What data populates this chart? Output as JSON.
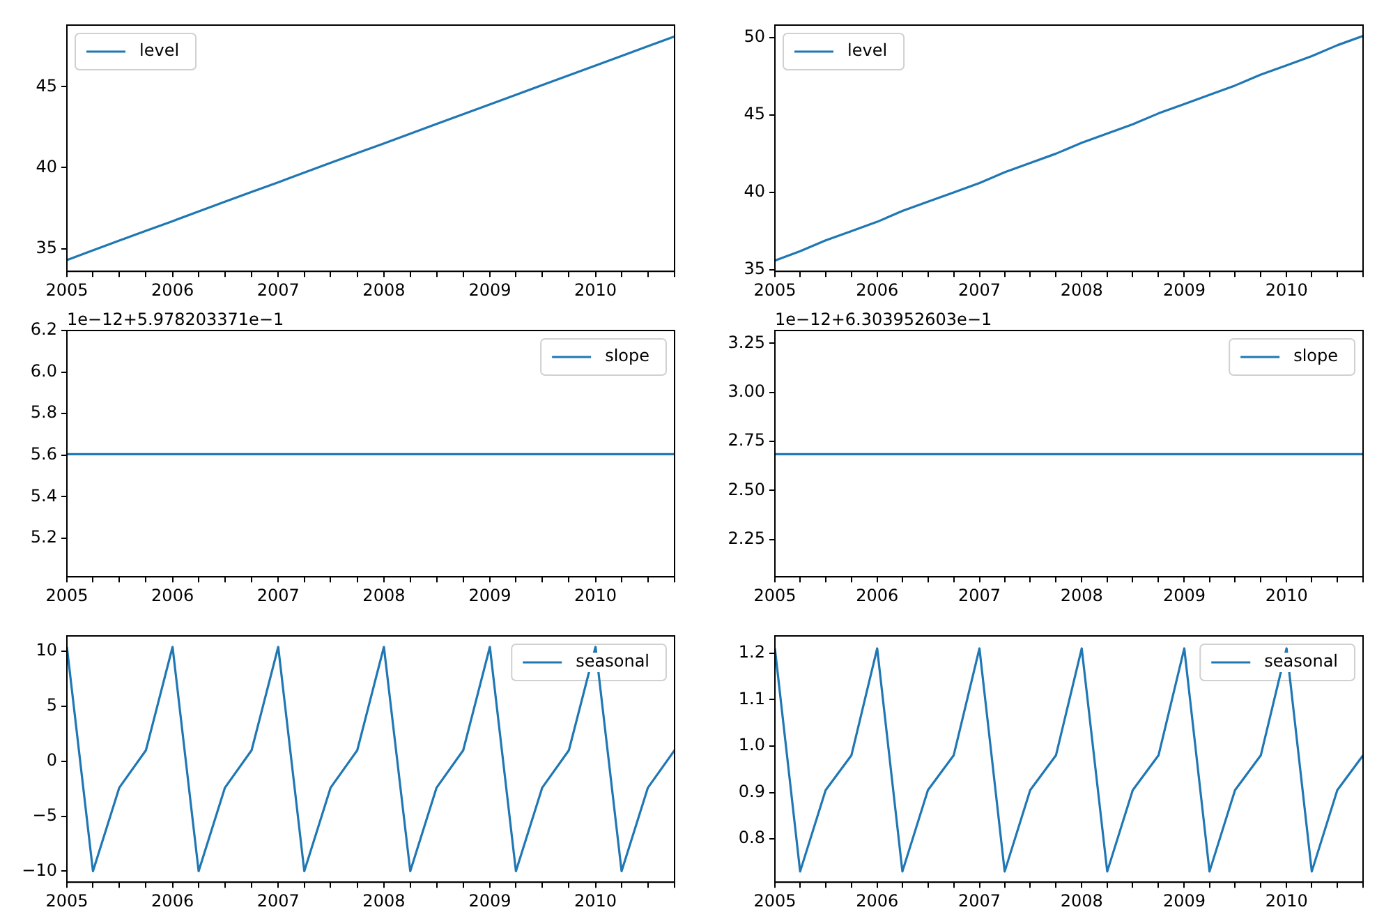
{
  "chart_data": [
    {
      "type": "line",
      "x": [
        "2005-01",
        "2005-04",
        "2005-07",
        "2005-10",
        "2006-01",
        "2006-04",
        "2006-07",
        "2006-10",
        "2007-01",
        "2007-04",
        "2007-07",
        "2007-10",
        "2008-01",
        "2008-04",
        "2008-07",
        "2008-10",
        "2009-01",
        "2009-04",
        "2009-07",
        "2009-10",
        "2010-01",
        "2010-04",
        "2010-07",
        "2010-10"
      ],
      "series": [
        {
          "name": "level",
          "color": "#1f77b4",
          "values": [
            34.3,
            34.9,
            35.5,
            36.1,
            36.7,
            37.3,
            37.9,
            38.5,
            39.1,
            39.7,
            40.3,
            40.9,
            41.5,
            42.1,
            42.7,
            43.3,
            43.9,
            44.5,
            45.1,
            45.7,
            46.3,
            46.9,
            47.5,
            48.1
          ]
        }
      ],
      "xlim": [
        "2005-01",
        "2010-10"
      ],
      "xticks": [
        {
          "value": "2005-01",
          "label": "2005"
        },
        {
          "value": "2005-04",
          "label": null
        },
        {
          "value": "2005-07",
          "label": null
        },
        {
          "value": "2005-10",
          "label": null
        },
        {
          "value": "2006-01",
          "label": "2006"
        },
        {
          "value": "2006-04",
          "label": null
        },
        {
          "value": "2006-07",
          "label": null
        },
        {
          "value": "2006-10",
          "label": null
        },
        {
          "value": "2007-01",
          "label": "2007"
        },
        {
          "value": "2007-04",
          "label": null
        },
        {
          "value": "2007-07",
          "label": null
        },
        {
          "value": "2007-10",
          "label": null
        },
        {
          "value": "2008-01",
          "label": "2008"
        },
        {
          "value": "2008-04",
          "label": null
        },
        {
          "value": "2008-07",
          "label": null
        },
        {
          "value": "2008-10",
          "label": null
        },
        {
          "value": "2009-01",
          "label": "2009"
        },
        {
          "value": "2009-04",
          "label": null
        },
        {
          "value": "2009-07",
          "label": null
        },
        {
          "value": "2009-10",
          "label": null
        },
        {
          "value": "2010-01",
          "label": "2010"
        },
        {
          "value": "2010-04",
          "label": null
        },
        {
          "value": "2010-07",
          "label": null
        },
        {
          "value": "2010-10",
          "label": null
        }
      ],
      "ylim": [
        33.6,
        48.8
      ],
      "yticks": [
        35,
        40,
        45
      ],
      "legend": "top left",
      "grid": false
    },
    {
      "type": "line",
      "x": [
        "2005-01",
        "2005-04",
        "2005-07",
        "2005-10",
        "2006-01",
        "2006-04",
        "2006-07",
        "2006-10",
        "2007-01",
        "2007-04",
        "2007-07",
        "2007-10",
        "2008-01",
        "2008-04",
        "2008-07",
        "2008-10",
        "2009-01",
        "2009-04",
        "2009-07",
        "2009-10",
        "2010-01",
        "2010-04",
        "2010-07",
        "2010-10"
      ],
      "series": [
        {
          "name": "level",
          "color": "#1f77b4",
          "values": [
            35.6,
            36.2,
            36.9,
            37.5,
            38.1,
            38.8,
            39.4,
            40.0,
            40.6,
            41.3,
            41.9,
            42.5,
            43.2,
            43.8,
            44.4,
            45.1,
            45.7,
            46.3,
            46.9,
            47.6,
            48.2,
            48.8,
            49.5,
            50.1
          ]
        }
      ],
      "xlim": [
        "2005-01",
        "2010-10"
      ],
      "xticks": [
        {
          "value": "2005-01",
          "label": "2005"
        },
        {
          "value": "2005-04",
          "label": null
        },
        {
          "value": "2005-07",
          "label": null
        },
        {
          "value": "2005-10",
          "label": null
        },
        {
          "value": "2006-01",
          "label": "2006"
        },
        {
          "value": "2006-04",
          "label": null
        },
        {
          "value": "2006-07",
          "label": null
        },
        {
          "value": "2006-10",
          "label": null
        },
        {
          "value": "2007-01",
          "label": "2007"
        },
        {
          "value": "2007-04",
          "label": null
        },
        {
          "value": "2007-07",
          "label": null
        },
        {
          "value": "2007-10",
          "label": null
        },
        {
          "value": "2008-01",
          "label": "2008"
        },
        {
          "value": "2008-04",
          "label": null
        },
        {
          "value": "2008-07",
          "label": null
        },
        {
          "value": "2008-10",
          "label": null
        },
        {
          "value": "2009-01",
          "label": "2009"
        },
        {
          "value": "2009-04",
          "label": null
        },
        {
          "value": "2009-07",
          "label": null
        },
        {
          "value": "2009-10",
          "label": null
        },
        {
          "value": "2010-01",
          "label": "2010"
        },
        {
          "value": "2010-04",
          "label": null
        },
        {
          "value": "2010-07",
          "label": null
        },
        {
          "value": "2010-10",
          "label": null
        }
      ],
      "ylim": [
        34.9,
        50.8
      ],
      "yticks": [
        35,
        40,
        45,
        50
      ],
      "legend": "top left",
      "grid": false
    },
    {
      "type": "line",
      "x": [
        "2005-01",
        "2005-04",
        "2005-07",
        "2005-10",
        "2006-01",
        "2006-04",
        "2006-07",
        "2006-10",
        "2007-01",
        "2007-04",
        "2007-07",
        "2007-10",
        "2008-01",
        "2008-04",
        "2008-07",
        "2008-10",
        "2009-01",
        "2009-04",
        "2009-07",
        "2009-10",
        "2010-01",
        "2010-04",
        "2010-07",
        "2010-10"
      ],
      "series": [
        {
          "name": "slope",
          "color": "#1f77b4",
          "values": [
            5.605,
            5.605,
            5.605,
            5.605,
            5.605,
            5.605,
            5.605,
            5.605,
            5.605,
            5.605,
            5.605,
            5.605,
            5.605,
            5.605,
            5.605,
            5.605,
            5.605,
            5.605,
            5.605,
            5.605,
            5.605,
            5.605,
            5.605,
            5.605
          ]
        }
      ],
      "xlim": [
        "2005-01",
        "2010-10"
      ],
      "xticks": [
        {
          "value": "2005-01",
          "label": "2005"
        },
        {
          "value": "2005-04",
          "label": null
        },
        {
          "value": "2005-07",
          "label": null
        },
        {
          "value": "2005-10",
          "label": null
        },
        {
          "value": "2006-01",
          "label": "2006"
        },
        {
          "value": "2006-04",
          "label": null
        },
        {
          "value": "2006-07",
          "label": null
        },
        {
          "value": "2006-10",
          "label": null
        },
        {
          "value": "2007-01",
          "label": "2007"
        },
        {
          "value": "2007-04",
          "label": null
        },
        {
          "value": "2007-07",
          "label": null
        },
        {
          "value": "2007-10",
          "label": null
        },
        {
          "value": "2008-01",
          "label": "2008"
        },
        {
          "value": "2008-04",
          "label": null
        },
        {
          "value": "2008-07",
          "label": null
        },
        {
          "value": "2008-10",
          "label": null
        },
        {
          "value": "2009-01",
          "label": "2009"
        },
        {
          "value": "2009-04",
          "label": null
        },
        {
          "value": "2009-07",
          "label": null
        },
        {
          "value": "2009-10",
          "label": null
        },
        {
          "value": "2010-01",
          "label": "2010"
        },
        {
          "value": "2010-04",
          "label": null
        },
        {
          "value": "2010-07",
          "label": null
        },
        {
          "value": "2010-10",
          "label": null
        }
      ],
      "ylim": [
        5.015,
        6.2
      ],
      "yticks": [
        5.2,
        5.4,
        5.6,
        5.8,
        {
          "value": 6.0,
          "label": "6.0"
        },
        6.2
      ],
      "legend": "top right",
      "grid": false,
      "annotations": [
        "1e−12+5.978203371e−1"
      ]
    },
    {
      "type": "line",
      "x": [
        "2005-01",
        "2005-04",
        "2005-07",
        "2005-10",
        "2006-01",
        "2006-04",
        "2006-07",
        "2006-10",
        "2007-01",
        "2007-04",
        "2007-07",
        "2007-10",
        "2008-01",
        "2008-04",
        "2008-07",
        "2008-10",
        "2009-01",
        "2009-04",
        "2009-07",
        "2009-10",
        "2010-01",
        "2010-04",
        "2010-07",
        "2010-10"
      ],
      "series": [
        {
          "name": "slope",
          "color": "#1f77b4",
          "values": [
            2.685,
            2.685,
            2.685,
            2.685,
            2.685,
            2.685,
            2.685,
            2.685,
            2.685,
            2.685,
            2.685,
            2.685,
            2.685,
            2.685,
            2.685,
            2.685,
            2.685,
            2.685,
            2.685,
            2.685,
            2.685,
            2.685,
            2.685,
            2.685
          ]
        }
      ],
      "xlim": [
        "2005-01",
        "2010-10"
      ],
      "xticks": [
        {
          "value": "2005-01",
          "label": "2005"
        },
        {
          "value": "2005-04",
          "label": null
        },
        {
          "value": "2005-07",
          "label": null
        },
        {
          "value": "2005-10",
          "label": null
        },
        {
          "value": "2006-01",
          "label": "2006"
        },
        {
          "value": "2006-04",
          "label": null
        },
        {
          "value": "2006-07",
          "label": null
        },
        {
          "value": "2006-10",
          "label": null
        },
        {
          "value": "2007-01",
          "label": "2007"
        },
        {
          "value": "2007-04",
          "label": null
        },
        {
          "value": "2007-07",
          "label": null
        },
        {
          "value": "2007-10",
          "label": null
        },
        {
          "value": "2008-01",
          "label": "2008"
        },
        {
          "value": "2008-04",
          "label": null
        },
        {
          "value": "2008-07",
          "label": null
        },
        {
          "value": "2008-10",
          "label": null
        },
        {
          "value": "2009-01",
          "label": "2009"
        },
        {
          "value": "2009-04",
          "label": null
        },
        {
          "value": "2009-07",
          "label": null
        },
        {
          "value": "2009-10",
          "label": null
        },
        {
          "value": "2010-01",
          "label": "2010"
        },
        {
          "value": "2010-04",
          "label": null
        },
        {
          "value": "2010-07",
          "label": null
        },
        {
          "value": "2010-10",
          "label": null
        }
      ],
      "ylim": [
        2.06,
        3.315
      ],
      "yticks": [
        2.25,
        {
          "value": 2.5,
          "label": "2.50"
        },
        2.75,
        {
          "value": 3.0,
          "label": "3.00"
        },
        3.25
      ],
      "legend": "top right",
      "grid": false,
      "annotations": [
        "1e−12+6.303952603e−1"
      ]
    },
    {
      "type": "line",
      "x": [
        "2005-01",
        "2005-04",
        "2005-07",
        "2005-10",
        "2006-01",
        "2006-04",
        "2006-07",
        "2006-10",
        "2007-01",
        "2007-04",
        "2007-07",
        "2007-10",
        "2008-01",
        "2008-04",
        "2008-07",
        "2008-10",
        "2009-01",
        "2009-04",
        "2009-07",
        "2009-10",
        "2010-01",
        "2010-04",
        "2010-07",
        "2010-10"
      ],
      "series": [
        {
          "name": "seasonal",
          "color": "#1f77b4",
          "values": [
            10.4,
            -10.0,
            -2.4,
            1.0,
            10.4,
            -10.0,
            -2.4,
            1.0,
            10.4,
            -10.0,
            -2.4,
            1.0,
            10.4,
            -10.0,
            -2.4,
            1.0,
            10.4,
            -10.0,
            -2.4,
            1.0,
            10.4,
            -10.0,
            -2.4,
            1.0
          ]
        }
      ],
      "xlim": [
        "2005-01",
        "2010-10"
      ],
      "xticks": [
        {
          "value": "2005-01",
          "label": "2005"
        },
        {
          "value": "2005-04",
          "label": null
        },
        {
          "value": "2005-07",
          "label": null
        },
        {
          "value": "2005-10",
          "label": null
        },
        {
          "value": "2006-01",
          "label": "2006"
        },
        {
          "value": "2006-04",
          "label": null
        },
        {
          "value": "2006-07",
          "label": null
        },
        {
          "value": "2006-10",
          "label": null
        },
        {
          "value": "2007-01",
          "label": "2007"
        },
        {
          "value": "2007-04",
          "label": null
        },
        {
          "value": "2007-07",
          "label": null
        },
        {
          "value": "2007-10",
          "label": null
        },
        {
          "value": "2008-01",
          "label": "2008"
        },
        {
          "value": "2008-04",
          "label": null
        },
        {
          "value": "2008-07",
          "label": null
        },
        {
          "value": "2008-10",
          "label": null
        },
        {
          "value": "2009-01",
          "label": "2009"
        },
        {
          "value": "2009-04",
          "label": null
        },
        {
          "value": "2009-07",
          "label": null
        },
        {
          "value": "2009-10",
          "label": null
        },
        {
          "value": "2010-01",
          "label": "2010"
        },
        {
          "value": "2010-04",
          "label": null
        },
        {
          "value": "2010-07",
          "label": null
        },
        {
          "value": "2010-10",
          "label": null
        }
      ],
      "ylim": [
        -11.0,
        11.4
      ],
      "yticks": [
        {
          "value": -10,
          "label": "−10"
        },
        {
          "value": -5,
          "label": "−5"
        },
        0,
        5,
        10
      ],
      "legend": "top right",
      "grid": false
    },
    {
      "type": "line",
      "x": [
        "2005-01",
        "2005-04",
        "2005-07",
        "2005-10",
        "2006-01",
        "2006-04",
        "2006-07",
        "2006-10",
        "2007-01",
        "2007-04",
        "2007-07",
        "2007-10",
        "2008-01",
        "2008-04",
        "2008-07",
        "2008-10",
        "2009-01",
        "2009-04",
        "2009-07",
        "2009-10",
        "2010-01",
        "2010-04",
        "2010-07",
        "2010-10"
      ],
      "series": [
        {
          "name": "seasonal",
          "color": "#1f77b4",
          "values": [
            1.21,
            0.73,
            0.905,
            0.98,
            1.21,
            0.73,
            0.905,
            0.98,
            1.21,
            0.73,
            0.905,
            0.98,
            1.21,
            0.73,
            0.905,
            0.98,
            1.21,
            0.73,
            0.905,
            0.98,
            1.21,
            0.73,
            0.905,
            0.98
          ]
        }
      ],
      "xlim": [
        "2005-01",
        "2010-10"
      ],
      "xticks": [
        {
          "value": "2005-01",
          "label": "2005"
        },
        {
          "value": "2005-04",
          "label": null
        },
        {
          "value": "2005-07",
          "label": null
        },
        {
          "value": "2005-10",
          "label": null
        },
        {
          "value": "2006-01",
          "label": "2006"
        },
        {
          "value": "2006-04",
          "label": null
        },
        {
          "value": "2006-07",
          "label": null
        },
        {
          "value": "2006-10",
          "label": null
        },
        {
          "value": "2007-01",
          "label": "2007"
        },
        {
          "value": "2007-04",
          "label": null
        },
        {
          "value": "2007-07",
          "label": null
        },
        {
          "value": "2007-10",
          "label": null
        },
        {
          "value": "2008-01",
          "label": "2008"
        },
        {
          "value": "2008-04",
          "label": null
        },
        {
          "value": "2008-07",
          "label": null
        },
        {
          "value": "2008-10",
          "label": null
        },
        {
          "value": "2009-01",
          "label": "2009"
        },
        {
          "value": "2009-04",
          "label": null
        },
        {
          "value": "2009-07",
          "label": null
        },
        {
          "value": "2009-10",
          "label": null
        },
        {
          "value": "2010-01",
          "label": "2010"
        },
        {
          "value": "2010-04",
          "label": null
        },
        {
          "value": "2010-07",
          "label": null
        },
        {
          "value": "2010-10",
          "label": null
        }
      ],
      "ylim": [
        0.707,
        1.237
      ],
      "yticks": [
        0.8,
        0.9,
        {
          "value": 1.0,
          "label": "1.0"
        },
        1.1,
        1.2
      ],
      "legend": "top right",
      "grid": false
    }
  ]
}
